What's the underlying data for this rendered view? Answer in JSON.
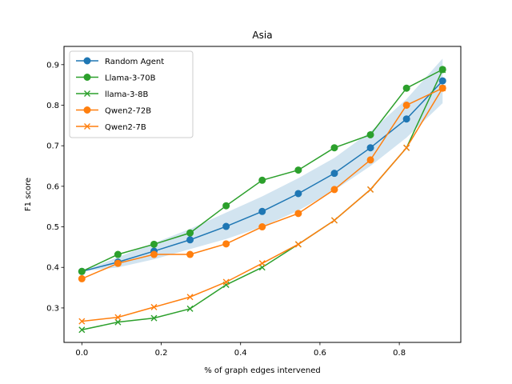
{
  "chart_data": {
    "type": "line",
    "title": "Asia",
    "xlabel": "% of graph edges intervened",
    "ylabel": "F1 score",
    "xlim": [
      -0.045,
      0.955
    ],
    "ylim": [
      0.215,
      0.945
    ],
    "xticks": [
      0.0,
      0.2,
      0.4,
      0.6,
      0.8
    ],
    "xtick_labels": [
      "0.0",
      "0.2",
      "0.4",
      "0.6",
      "0.8"
    ],
    "yticks": [
      0.3,
      0.4,
      0.5,
      0.6,
      0.7,
      0.8,
      0.9
    ],
    "ytick_labels": [
      "0.3",
      "0.4",
      "0.5",
      "0.6",
      "0.7",
      "0.8",
      "0.9"
    ],
    "grid": false,
    "legend_position": "upper-left",
    "x": [
      0.0,
      0.0909,
      0.1818,
      0.2727,
      0.3636,
      0.4545,
      0.5455,
      0.6364,
      0.7273,
      0.8182,
      0.9091
    ],
    "band": {
      "series": "Random Agent",
      "color": "#1f77b4",
      "lower": [
        0.39,
        0.4,
        0.42,
        0.445,
        0.47,
        0.5,
        0.54,
        0.59,
        0.65,
        0.72,
        0.805
      ],
      "upper": [
        0.39,
        0.425,
        0.46,
        0.495,
        0.535,
        0.575,
        0.62,
        0.67,
        0.735,
        0.815,
        0.915
      ]
    },
    "series": [
      {
        "name": "Random Agent",
        "color": "#1f77b4",
        "marker": "o",
        "values": [
          0.39,
          0.413,
          0.44,
          0.468,
          0.501,
          0.538,
          0.582,
          0.632,
          0.695,
          0.766,
          0.86
        ]
      },
      {
        "name": "Llama-3-70B",
        "color": "#2ca02c",
        "marker": "o",
        "values": [
          0.39,
          0.432,
          0.457,
          0.485,
          0.552,
          0.615,
          0.64,
          0.695,
          0.727,
          0.842,
          0.888
        ]
      },
      {
        "name": "llama-3-8B",
        "color": "#2ca02c",
        "marker": "x",
        "values": [
          0.246,
          0.265,
          0.275,
          0.298,
          0.357,
          0.4,
          0.457,
          0.516,
          0.592,
          0.695,
          0.887
        ]
      },
      {
        "name": "Qwen2-72B",
        "color": "#ff7f0e",
        "marker": "o",
        "values": [
          0.372,
          0.41,
          0.432,
          0.432,
          0.458,
          0.5,
          0.533,
          0.592,
          0.665,
          0.8,
          0.842
        ]
      },
      {
        "name": "Qwen2-7B",
        "color": "#ff7f0e",
        "marker": "x",
        "values": [
          0.267,
          0.277,
          0.302,
          0.327,
          0.364,
          0.41,
          0.457,
          0.516,
          0.592,
          0.695,
          0.842
        ]
      }
    ]
  }
}
